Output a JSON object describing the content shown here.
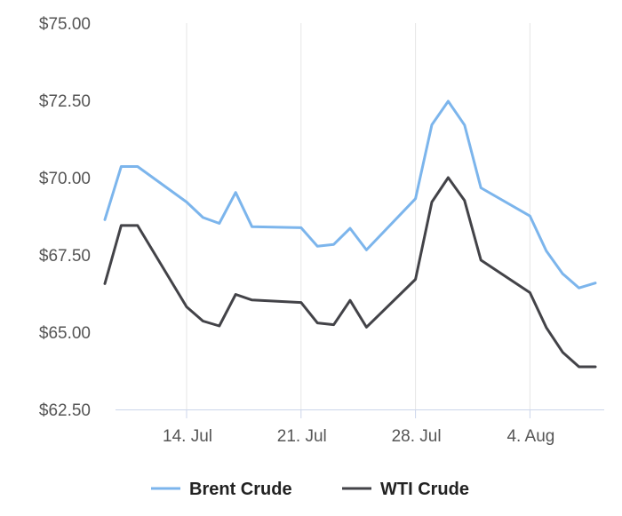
{
  "chart_data": {
    "type": "line",
    "title": "",
    "xlabel": "",
    "ylabel": "",
    "ylim": [
      62.5,
      75
    ],
    "yticks": [
      "$62.50",
      "$65.00",
      "$67.50",
      "$70.00",
      "$72.50",
      "$75.00"
    ],
    "yticks_values": [
      62.5,
      65,
      67.5,
      70,
      72.5,
      75
    ],
    "xticks": [
      "14. Jul",
      "21. Jul",
      "28. Jul",
      "4. Aug"
    ],
    "xticks_dates": [
      "2025-07-14",
      "2025-07-21",
      "2025-07-28",
      "2025-08-04"
    ],
    "xlim": [
      "2025-07-09",
      "2025-08-08"
    ],
    "grid": "vertical",
    "legend": "bottom-center",
    "x": [
      "2025-07-09",
      "2025-07-10",
      "2025-07-11",
      "2025-07-14",
      "2025-07-15",
      "2025-07-16",
      "2025-07-17",
      "2025-07-18",
      "2025-07-21",
      "2025-07-22",
      "2025-07-23",
      "2025-07-24",
      "2025-07-25",
      "2025-07-28",
      "2025-07-29",
      "2025-07-30",
      "2025-07-31",
      "2025-08-01",
      "2025-08-04",
      "2025-08-05",
      "2025-08-06",
      "2025-08-07",
      "2025-08-08"
    ],
    "series": [
      {
        "name": "Brent Crude",
        "color": "#7cb5ec",
        "values": [
          68.64,
          70.36,
          70.36,
          69.21,
          68.71,
          68.52,
          69.52,
          68.41,
          68.38,
          67.78,
          67.84,
          68.36,
          67.66,
          69.32,
          71.71,
          72.47,
          71.7,
          69.67,
          68.76,
          67.63,
          66.89,
          66.43,
          66.59
        ]
      },
      {
        "name": "WTI Crude",
        "color": "#434348",
        "values": [
          66.57,
          68.45,
          68.45,
          65.82,
          65.36,
          65.2,
          66.22,
          66.04,
          65.96,
          65.3,
          65.24,
          66.03,
          65.16,
          66.71,
          69.21,
          70.0,
          69.26,
          67.33,
          66.28,
          65.15,
          64.35,
          63.88,
          63.88
        ]
      }
    ]
  }
}
